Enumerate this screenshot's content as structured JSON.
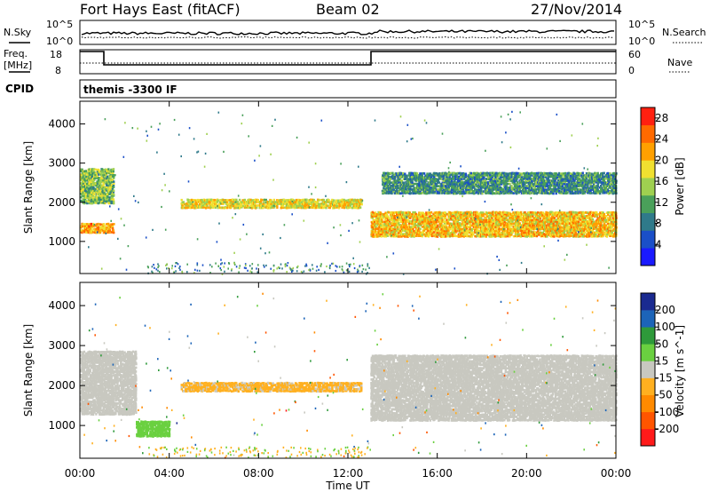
{
  "header": {
    "title": "Fort Hays East (fitACF)",
    "beam": "Beam 02",
    "date": "27/Nov/2014"
  },
  "top_panels": {
    "nsky_label": "N.Sky",
    "nsearch_label": "N.Search",
    "freq_label_line1": "Freq.",
    "freq_label_line2": "[MHz]",
    "nave_label": "Nave",
    "cpid_label": "CPID",
    "cpid_value": "themis -3300 IF",
    "noise_left_ticks": [
      "10^5",
      "10^0"
    ],
    "noise_right_ticks": [
      "10^5",
      "10^0"
    ],
    "freq_ticks": [
      "18",
      "8"
    ],
    "nave_ticks": [
      "60",
      "0"
    ]
  },
  "colors": {
    "power_scale": [
      "#1a1aff",
      "#1a4fc8",
      "#2f7a8a",
      "#4aa05a",
      "#9fd050",
      "#f0e030",
      "#ffa000",
      "#ff6a00",
      "#ff2010"
    ],
    "velocity_scale": [
      "#ff1a1a",
      "#ff5500",
      "#ff8a00",
      "#ffb020",
      "#c8c8c0",
      "#6ad040",
      "#2e9a3a",
      "#1c64b8",
      "#1a2a90"
    ],
    "ground_scatter": "#c8c8c0"
  },
  "chart_data": [
    {
      "type": "heatmap",
      "title": "Power",
      "xlabel": "Time UT",
      "ylabel": "Slant Range [km]",
      "x_ticks": [
        "00:00",
        "04:00",
        "08:00",
        "12:00",
        "16:00",
        "20:00",
        "00:00"
      ],
      "xlim": [
        0,
        24
      ],
      "ylim": [
        180,
        4580
      ],
      "y_ticks": [
        1000,
        2000,
        3000,
        4000
      ],
      "colorbar": {
        "label": "Power [dB]",
        "ticks": [
          4,
          8,
          12,
          16,
          20,
          24,
          28
        ],
        "range": [
          0,
          30
        ]
      },
      "echo_regions": [
        {
          "name": "E-region band",
          "t_start": 0.0,
          "t_end": 1.5,
          "range_start": 1250,
          "range_end": 1500,
          "power_db": 22
        },
        {
          "name": "F-region pre-midnight",
          "t_start": 0.0,
          "t_end": 1.5,
          "range_start": 2000,
          "range_end": 2900,
          "power_db": 14
        },
        {
          "name": "Mid-range band",
          "t_start": 4.5,
          "t_end": 12.6,
          "range_start": 1880,
          "range_end": 2120,
          "power_db": 18
        },
        {
          "name": "Morning F band",
          "t_start": 13.0,
          "t_end": 24.0,
          "range_start": 1150,
          "range_end": 1800,
          "power_db": 20
        },
        {
          "name": "Upper F band",
          "t_start": 13.5,
          "t_end": 24.0,
          "range_start": 2250,
          "range_end": 2800,
          "power_db": 10
        }
      ]
    },
    {
      "type": "heatmap",
      "title": "Velocity",
      "xlabel": "Time UT",
      "ylabel": "Slant Range [km]",
      "x_ticks": [
        "00:00",
        "04:00",
        "08:00",
        "12:00",
        "16:00",
        "20:00",
        "00:00"
      ],
      "xlim": [
        0,
        24
      ],
      "ylim": [
        180,
        4580
      ],
      "y_ticks": [
        1000,
        2000,
        3000,
        4000
      ],
      "colorbar": {
        "label": "Velocity [m s^-1]",
        "ticks": [
          200,
          100,
          50,
          15,
          -15,
          -50,
          -100,
          -200
        ],
        "range": [
          -250,
          250
        ]
      },
      "echo_regions": [
        {
          "name": "Ground scatter pre-midnight",
          "t_start": 0.0,
          "t_end": 2.5,
          "range_start": 1300,
          "range_end": 2900,
          "velocity": 0
        },
        {
          "name": "Eastward flow band",
          "t_start": 4.5,
          "t_end": 12.6,
          "range_start": 1880,
          "range_end": 2120,
          "velocity": -40
        },
        {
          "name": "Ground scatter morning",
          "t_start": 13.0,
          "t_end": 24.0,
          "range_start": 1150,
          "range_end": 2800,
          "velocity": 0
        },
        {
          "name": "Low-range flow",
          "t_start": 2.5,
          "t_end": 4.0,
          "range_start": 750,
          "range_end": 1150,
          "velocity": 60
        }
      ]
    }
  ]
}
